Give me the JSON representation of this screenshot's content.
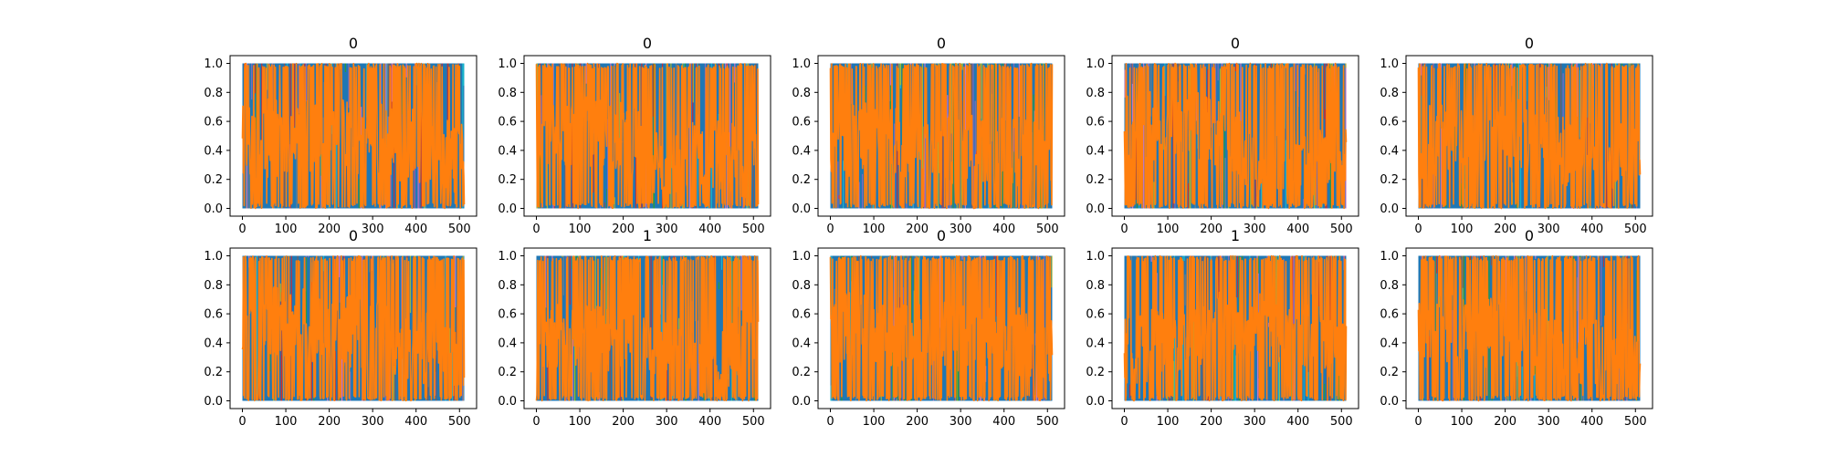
{
  "figure": {
    "colors": {
      "background": "#ffffff",
      "axes_edge": "#000000",
      "series_primary": "#ff7f0e",
      "series_background": "#1f77b4",
      "series_accents": [
        "#17becf",
        "#2ca02c",
        "#bcbd22",
        "#7f7f7f",
        "#e377c2",
        "#9467bd",
        "#d62728",
        "#8c564b"
      ]
    }
  },
  "chart_data": [
    {
      "type": "line",
      "title": "0",
      "xlabel": "",
      "ylabel": "",
      "xlim": [
        0,
        511
      ],
      "ylim": [
        0.0,
        1.0
      ],
      "xticks": [
        0,
        100,
        200,
        300,
        400,
        500
      ],
      "yticks": [
        0.0,
        0.2,
        0.4,
        0.6,
        0.8,
        1.0
      ],
      "xtick_labels": [
        "0",
        "100",
        "200",
        "300",
        "400",
        "500"
      ],
      "ytick_labels": [
        "0.0",
        "0.2",
        "0.4",
        "0.6",
        "0.8",
        "1.0"
      ],
      "legend": "none",
      "grid": false,
      "highlight_series": {
        "color": "#ff7f0e",
        "profile_x": [
          0,
          100,
          200,
          300,
          400,
          450,
          510
        ],
        "profile_y": [
          0.45,
          0.5,
          0.5,
          0.48,
          0.45,
          0.42,
          0.35
        ],
        "spread": 0.55
      }
    },
    {
      "type": "line",
      "title": "0",
      "xlabel": "",
      "ylabel": "",
      "xlim": [
        0,
        511
      ],
      "ylim": [
        0.0,
        1.0
      ],
      "xticks": [
        0,
        100,
        200,
        300,
        400,
        500
      ],
      "yticks": [
        0.0,
        0.2,
        0.4,
        0.6,
        0.8,
        1.0
      ],
      "xtick_labels": [
        "0",
        "100",
        "200",
        "300",
        "400",
        "500"
      ],
      "ytick_labels": [
        "0.0",
        "0.2",
        "0.4",
        "0.6",
        "0.8",
        "1.0"
      ],
      "legend": "none",
      "grid": false,
      "highlight_series": {
        "color": "#ff7f0e",
        "profile_x": [
          0,
          100,
          200,
          300,
          400,
          450,
          510
        ],
        "profile_y": [
          0.5,
          0.55,
          0.5,
          0.3,
          0.4,
          0.35,
          0.3
        ],
        "spread": 0.5
      }
    },
    {
      "type": "line",
      "title": "0",
      "xlabel": "",
      "ylabel": "",
      "xlim": [
        0,
        511
      ],
      "ylim": [
        0.0,
        1.0
      ],
      "xticks": [
        0,
        100,
        200,
        300,
        400,
        500
      ],
      "yticks": [
        0.0,
        0.2,
        0.4,
        0.6,
        0.8,
        1.0
      ],
      "xtick_labels": [
        "0",
        "100",
        "200",
        "300",
        "400",
        "500"
      ],
      "ytick_labels": [
        "0.0",
        "0.2",
        "0.4",
        "0.6",
        "0.8",
        "1.0"
      ],
      "legend": "none",
      "grid": false,
      "highlight_series": {
        "color": "#ff7f0e",
        "profile_x": [
          0,
          100,
          200,
          300,
          400,
          450,
          510
        ],
        "profile_y": [
          0.45,
          0.5,
          0.45,
          0.4,
          0.45,
          0.38,
          0.35
        ],
        "spread": 0.5
      }
    },
    {
      "type": "line",
      "title": "0",
      "xlabel": "",
      "ylabel": "",
      "xlim": [
        0,
        511
      ],
      "ylim": [
        0.0,
        1.0
      ],
      "xticks": [
        0,
        100,
        200,
        300,
        400,
        500
      ],
      "yticks": [
        0.0,
        0.2,
        0.4,
        0.6,
        0.8,
        1.0
      ],
      "xtick_labels": [
        "0",
        "100",
        "200",
        "300",
        "400",
        "500"
      ],
      "ytick_labels": [
        "0.0",
        "0.2",
        "0.4",
        "0.6",
        "0.8",
        "1.0"
      ],
      "legend": "none",
      "grid": false,
      "highlight_series": {
        "color": "#ff7f0e",
        "profile_x": [
          0,
          100,
          200,
          300,
          400,
          450,
          510
        ],
        "profile_y": [
          0.55,
          0.6,
          0.55,
          0.35,
          0.3,
          0.32,
          0.3
        ],
        "spread": 0.5
      }
    },
    {
      "type": "line",
      "title": "0",
      "xlabel": "",
      "ylabel": "",
      "xlim": [
        0,
        511
      ],
      "ylim": [
        0.0,
        1.0
      ],
      "xticks": [
        0,
        100,
        200,
        300,
        400,
        500
      ],
      "yticks": [
        0.0,
        0.2,
        0.4,
        0.6,
        0.8,
        1.0
      ],
      "xtick_labels": [
        "0",
        "100",
        "200",
        "300",
        "400",
        "500"
      ],
      "ytick_labels": [
        "0.0",
        "0.2",
        "0.4",
        "0.6",
        "0.8",
        "1.0"
      ],
      "legend": "none",
      "grid": false,
      "highlight_series": {
        "color": "#ff7f0e",
        "profile_x": [
          0,
          100,
          200,
          300,
          400,
          450,
          510
        ],
        "profile_y": [
          0.45,
          0.5,
          0.55,
          0.4,
          0.38,
          0.35,
          0.38
        ],
        "spread": 0.5
      }
    },
    {
      "type": "line",
      "title": "0",
      "xlabel": "",
      "ylabel": "",
      "xlim": [
        0,
        511
      ],
      "ylim": [
        0.0,
        1.0
      ],
      "xticks": [
        0,
        100,
        200,
        300,
        400,
        500
      ],
      "yticks": [
        0.0,
        0.2,
        0.4,
        0.6,
        0.8,
        1.0
      ],
      "xtick_labels": [
        "0",
        "100",
        "200",
        "300",
        "400",
        "500"
      ],
      "ytick_labels": [
        "0.0",
        "0.2",
        "0.4",
        "0.6",
        "0.8",
        "1.0"
      ],
      "legend": "none",
      "grid": false,
      "highlight_series": {
        "color": "#ff7f0e",
        "profile_x": [
          0,
          100,
          200,
          300,
          400,
          450,
          510
        ],
        "profile_y": [
          0.5,
          0.55,
          0.5,
          0.45,
          0.38,
          0.35,
          0.35
        ],
        "spread": 0.5
      }
    },
    {
      "type": "line",
      "title": "1",
      "xlabel": "",
      "ylabel": "",
      "xlim": [
        0,
        511
      ],
      "ylim": [
        0.0,
        1.0
      ],
      "xticks": [
        0,
        100,
        200,
        300,
        400,
        500
      ],
      "yticks": [
        0.0,
        0.2,
        0.4,
        0.6,
        0.8,
        1.0
      ],
      "xtick_labels": [
        "0",
        "100",
        "200",
        "300",
        "400",
        "500"
      ],
      "ytick_labels": [
        "0.0",
        "0.2",
        "0.4",
        "0.6",
        "0.8",
        "1.0"
      ],
      "legend": "none",
      "grid": false,
      "highlight_series": {
        "color": "#ff7f0e",
        "profile_x": [
          0,
          100,
          200,
          300,
          400,
          450,
          510
        ],
        "profile_y": [
          0.4,
          0.45,
          0.45,
          0.35,
          0.3,
          0.3,
          0.35
        ],
        "spread": 0.5
      }
    },
    {
      "type": "line",
      "title": "0",
      "xlabel": "",
      "ylabel": "",
      "xlim": [
        0,
        511
      ],
      "ylim": [
        0.0,
        1.0
      ],
      "xticks": [
        0,
        100,
        200,
        300,
        400,
        500
      ],
      "yticks": [
        0.0,
        0.2,
        0.4,
        0.6,
        0.8,
        1.0
      ],
      "xtick_labels": [
        "0",
        "100",
        "200",
        "300",
        "400",
        "500"
      ],
      "ytick_labels": [
        "0.0",
        "0.2",
        "0.4",
        "0.6",
        "0.8",
        "1.0"
      ],
      "legend": "none",
      "grid": false,
      "highlight_series": {
        "color": "#ff7f0e",
        "profile_x": [
          0,
          100,
          200,
          300,
          400,
          450,
          510
        ],
        "profile_y": [
          0.5,
          0.5,
          0.48,
          0.45,
          0.45,
          0.4,
          0.38
        ],
        "spread": 0.5
      }
    },
    {
      "type": "line",
      "title": "1",
      "xlabel": "",
      "ylabel": "",
      "xlim": [
        0,
        511
      ],
      "ylim": [
        0.0,
        1.0
      ],
      "xticks": [
        0,
        100,
        200,
        300,
        400,
        500
      ],
      "yticks": [
        0.0,
        0.2,
        0.4,
        0.6,
        0.8,
        1.0
      ],
      "xtick_labels": [
        "0",
        "100",
        "200",
        "300",
        "400",
        "500"
      ],
      "ytick_labels": [
        "0.0",
        "0.2",
        "0.4",
        "0.6",
        "0.8",
        "1.0"
      ],
      "legend": "none",
      "grid": false,
      "highlight_series": {
        "color": "#ff7f0e",
        "profile_x": [
          0,
          100,
          200,
          300,
          400,
          450,
          510
        ],
        "profile_y": [
          0.35,
          0.4,
          0.5,
          0.5,
          0.45,
          0.4,
          0.35
        ],
        "spread": 0.5
      }
    },
    {
      "type": "line",
      "title": "0",
      "xlabel": "",
      "ylabel": "",
      "xlim": [
        0,
        511
      ],
      "ylim": [
        0.0,
        1.0
      ],
      "xticks": [
        0,
        100,
        200,
        300,
        400,
        500
      ],
      "yticks": [
        0.0,
        0.2,
        0.4,
        0.6,
        0.8,
        1.0
      ],
      "xtick_labels": [
        "0",
        "100",
        "200",
        "300",
        "400",
        "500"
      ],
      "ytick_labels": [
        "0.0",
        "0.2",
        "0.4",
        "0.6",
        "0.8",
        "1.0"
      ],
      "legend": "none",
      "grid": false,
      "highlight_series": {
        "color": "#ff7f0e",
        "profile_x": [
          0,
          100,
          200,
          300,
          400,
          450,
          510
        ],
        "profile_y": [
          0.5,
          0.5,
          0.45,
          0.4,
          0.35,
          0.35,
          0.3
        ],
        "spread": 0.5
      }
    }
  ]
}
